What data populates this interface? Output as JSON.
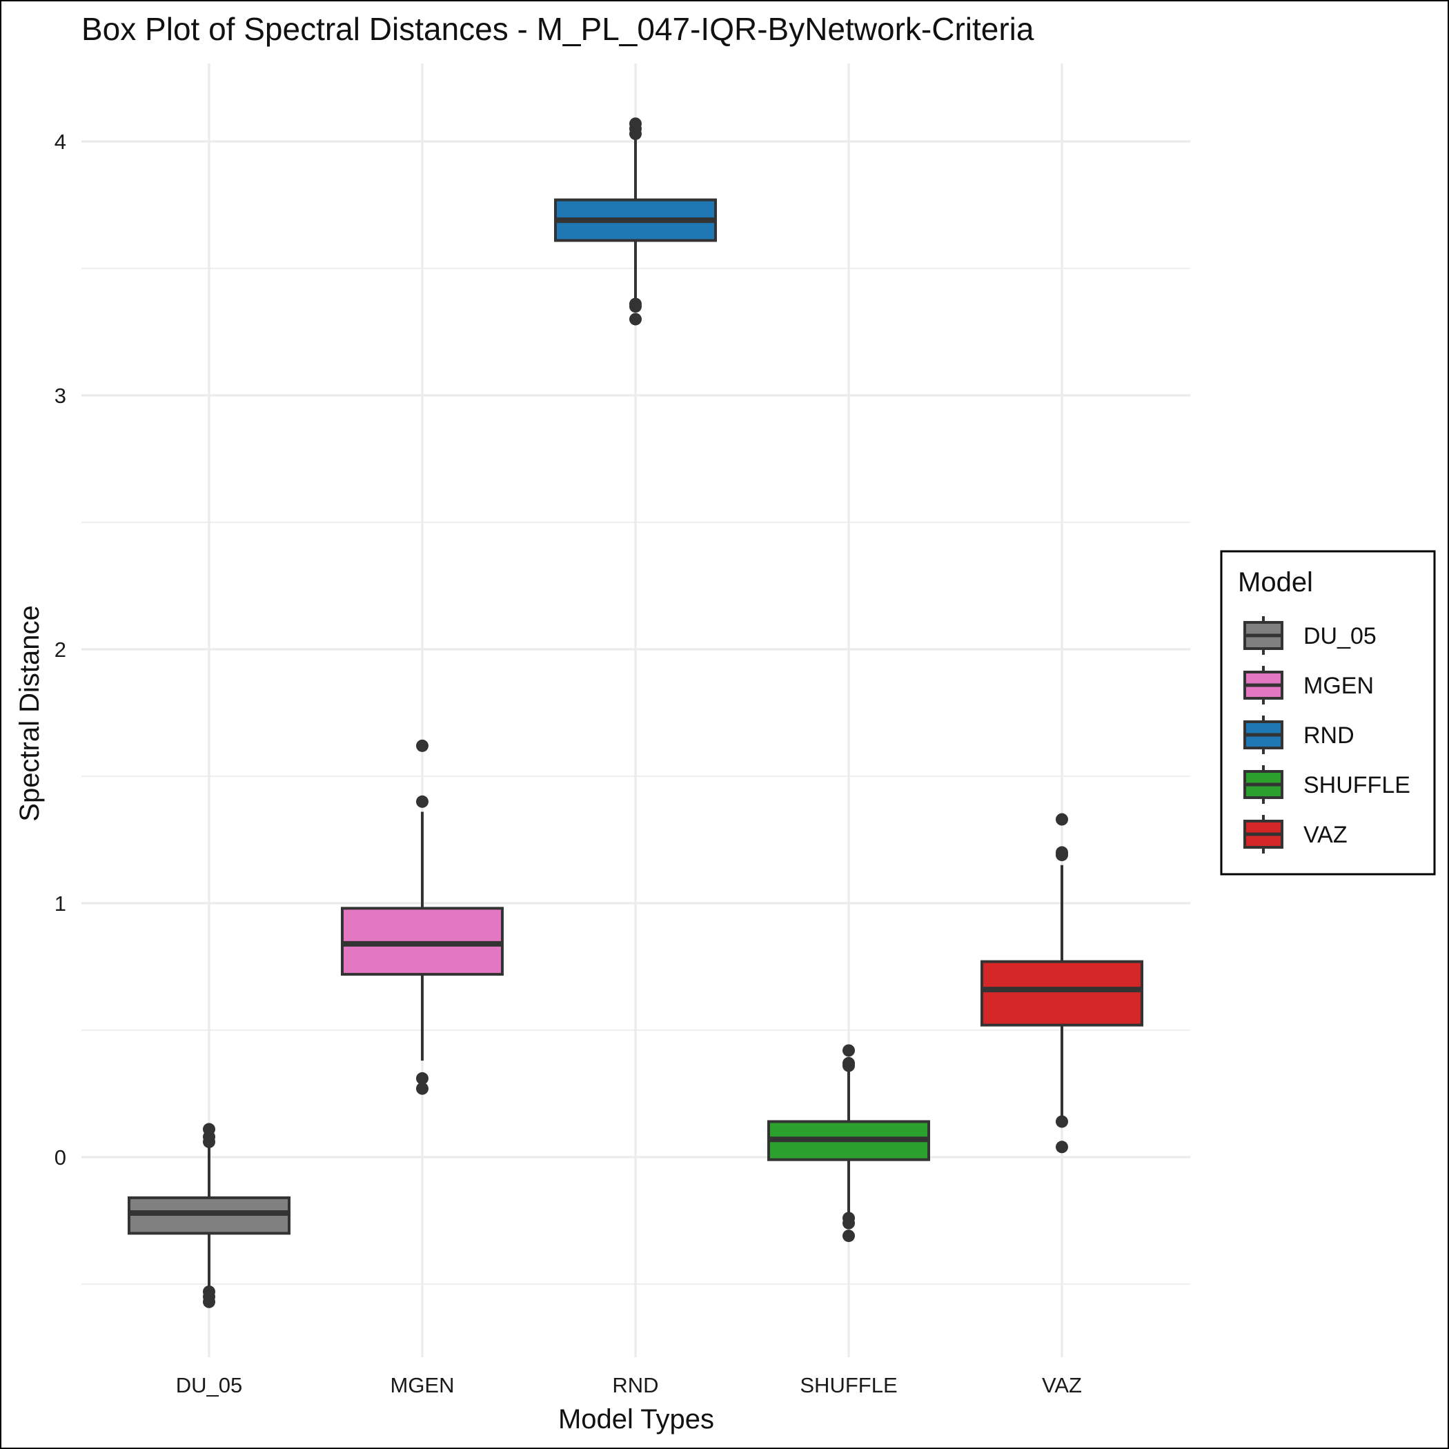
{
  "chart_data": {
    "type": "box",
    "title": "Box Plot of Spectral Distances -  M_PL_047-IQR-ByNetwork-Criteria",
    "xlabel": "Model Types",
    "ylabel": "Spectral Distance",
    "categories": [
      "DU_05",
      "MGEN",
      "RND",
      "SHUFFLE",
      "VAZ"
    ],
    "ylim": [
      -0.75,
      4.3
    ],
    "yticks": [
      0,
      1,
      2,
      3,
      4
    ],
    "grid": true,
    "legend": {
      "title": "Model",
      "position": "right",
      "entries": [
        "DU_05",
        "MGEN",
        "RND",
        "SHUFFLE",
        "VAZ"
      ]
    },
    "series": [
      {
        "name": "DU_05",
        "color": "#808080",
        "whisker_low": -0.52,
        "q1": -0.3,
        "median": -0.22,
        "q3": -0.16,
        "whisker_high": 0.06,
        "outliers": [
          0.11,
          0.08,
          0.06,
          -0.53,
          -0.55,
          -0.57
        ]
      },
      {
        "name": "MGEN",
        "color": "#e377c2",
        "whisker_low": 0.38,
        "q1": 0.72,
        "median": 0.84,
        "q3": 0.98,
        "whisker_high": 1.36,
        "outliers": [
          1.62,
          1.4,
          0.31,
          0.27
        ]
      },
      {
        "name": "RND",
        "color": "#1f77b4",
        "whisker_low": 3.36,
        "q1": 3.61,
        "median": 3.69,
        "q3": 3.77,
        "whisker_high": 4.02,
        "outliers": [
          4.07,
          4.05,
          4.03,
          3.36,
          3.35,
          3.3
        ]
      },
      {
        "name": "SHUFFLE",
        "color": "#2ca02c",
        "whisker_low": -0.22,
        "q1": -0.01,
        "median": 0.07,
        "q3": 0.14,
        "whisker_high": 0.36,
        "outliers": [
          0.42,
          0.37,
          0.36,
          -0.24,
          -0.26,
          -0.31
        ]
      },
      {
        "name": "VAZ",
        "color": "#d62728",
        "whisker_low": 0.14,
        "q1": 0.52,
        "median": 0.66,
        "q3": 0.77,
        "whisker_high": 1.15,
        "outliers": [
          1.33,
          1.2,
          1.19,
          0.14,
          0.04
        ]
      }
    ]
  }
}
